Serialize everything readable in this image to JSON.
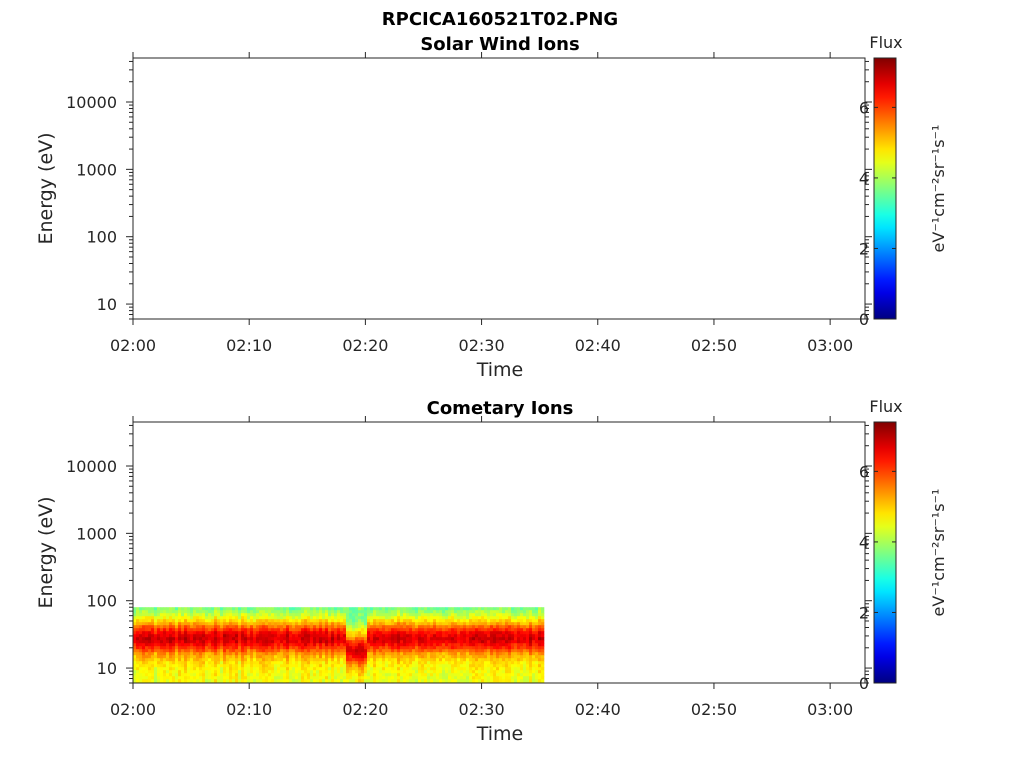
{
  "figure_title": "RPCICA160521T02.PNG",
  "chart_data": [
    {
      "type": "heatmap",
      "title": "Solar Wind Ions",
      "xlabel": "Time",
      "ylabel": "Energy (eV)",
      "x_ticks": [
        "02:00",
        "02:10",
        "02:20",
        "02:30",
        "02:40",
        "02:50",
        "03:00"
      ],
      "xlim_minutes": [
        0,
        63
      ],
      "y_scale": "log",
      "ylim": [
        6,
        45000
      ],
      "y_ticks": [
        10,
        100,
        1000,
        10000
      ],
      "y_tick_labels": [
        "10",
        "100",
        "1000",
        "10000"
      ],
      "colorbar": {
        "title": "Flux",
        "label": "eV⁻¹cm⁻²sr⁻¹s⁻¹",
        "range": [
          0,
          7.4
        ],
        "ticks": [
          "0",
          "2",
          "4",
          "6"
        ],
        "colormap": "jet"
      },
      "data": "empty"
    },
    {
      "type": "heatmap",
      "title": "Cometary Ions",
      "xlabel": "Time",
      "ylabel": "Energy (eV)",
      "x_ticks": [
        "02:00",
        "02:10",
        "02:20",
        "02:30",
        "02:40",
        "02:50",
        "03:00"
      ],
      "xlim_minutes": [
        0,
        63
      ],
      "y_scale": "log",
      "ylim": [
        6,
        45000
      ],
      "y_ticks": [
        10,
        100,
        1000,
        10000
      ],
      "y_tick_labels": [
        "10",
        "100",
        "1000",
        "10000"
      ],
      "colorbar": {
        "title": "Flux",
        "label": "eV⁻¹cm⁻²sr⁻¹s⁻¹",
        "range": [
          0,
          7.4
        ],
        "ticks": [
          "0",
          "2",
          "4",
          "6"
        ],
        "colormap": "jet"
      },
      "data_extent": {
        "x_minutes": [
          0,
          35.2
        ],
        "energy_eV": [
          6,
          80
        ]
      },
      "profile": [
        {
          "energy_eV": 80,
          "flux": 3.6
        },
        {
          "energy_eV": 60,
          "flux": 4.3
        },
        {
          "energy_eV": 48,
          "flux": 5.0
        },
        {
          "energy_eV": 40,
          "flux": 5.8
        },
        {
          "energy_eV": 34,
          "flux": 6.4
        },
        {
          "energy_eV": 28,
          "flux": 6.8
        },
        {
          "energy_eV": 24,
          "flux": 6.6
        },
        {
          "energy_eV": 20,
          "flux": 6.1
        },
        {
          "energy_eV": 16,
          "flux": 5.3
        },
        {
          "energy_eV": 12,
          "flux": 4.8
        },
        {
          "energy_eV": 9,
          "flux": 4.6
        },
        {
          "energy_eV": 6,
          "flux": 4.5
        }
      ],
      "feature": {
        "x_minutes": 18.5,
        "description_value": "band dip"
      }
    }
  ]
}
